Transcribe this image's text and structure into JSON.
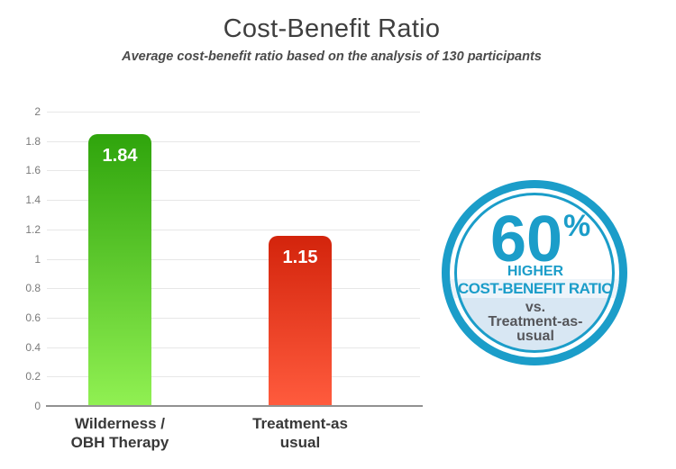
{
  "header": {
    "title": "Cost-Benefit Ratio",
    "subtitle": "Average cost-benefit ratio based on the analysis of 130 participants"
  },
  "chart_data": {
    "type": "bar",
    "title": "Cost-Benefit Ratio",
    "subtitle": "Average cost-benefit ratio based on the analysis of 130 participants",
    "categories": [
      "Wilderness /\nOBH Therapy",
      "Treatment-as\nusual"
    ],
    "values": [
      1.84,
      1.15
    ],
    "value_labels": [
      "1.84",
      "1.15"
    ],
    "xlabel": "",
    "ylabel": "",
    "ylim": [
      0,
      2
    ],
    "ytick_step": 0.2,
    "ytick_labels": [
      "0",
      "0.2",
      "0.4",
      "0.6",
      "0.8",
      "1",
      "1.2",
      "1.4",
      "1.6",
      "1.8",
      "2"
    ],
    "grid": true,
    "legend": false,
    "bar_gradients": [
      {
        "top": "#2fa40c",
        "bottom": "#90f052"
      },
      {
        "top": "#d3240c",
        "bottom": "#ff5b3d"
      }
    ]
  },
  "badge": {
    "percent_value": "60",
    "percent_sign": "%",
    "line1": "HIGHER",
    "line2": "COST-BENEFIT RATIO",
    "vs": "vs.",
    "compare_line1": "Treatment-as-",
    "compare_line2": "usual",
    "ring_color": "#1b9dc9",
    "blue_text_color": "#1b9dc9",
    "band_color": "#edf4fa",
    "bottom_fill_color": "#d8e7f3",
    "gray_text_color": "#55565a"
  }
}
